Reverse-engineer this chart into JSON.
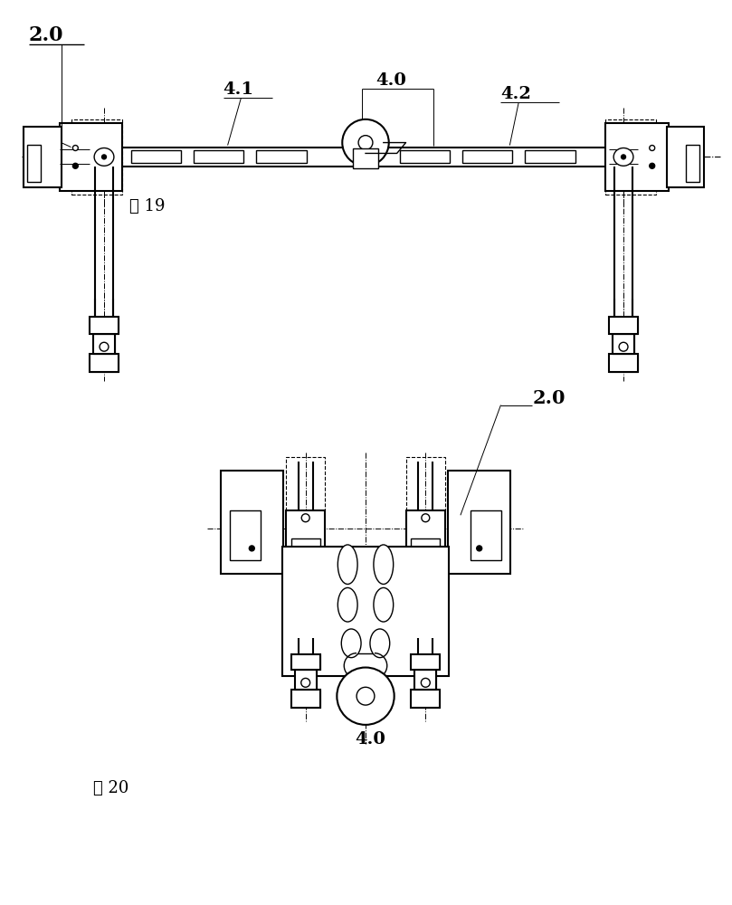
{
  "bg_color": "#ffffff",
  "line_color": "#000000",
  "fig19_label": "图 19",
  "fig20_label": "图 20",
  "label_20_top": "2.0",
  "label_41": "4.1",
  "label_40_top": "4.0",
  "label_42": "4.2",
  "label_20_bottom": "2.0",
  "label_40_bottom": "4.0",
  "fig_width": 8.09,
  "fig_height": 10.0,
  "dpi": 100
}
